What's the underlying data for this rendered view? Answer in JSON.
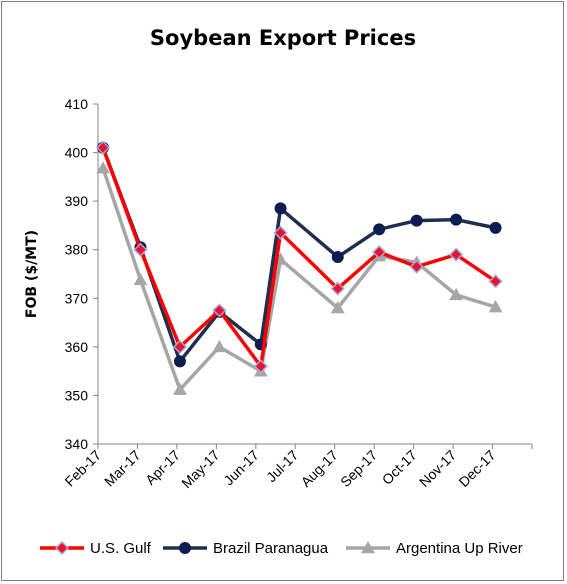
{
  "chart_data": {
    "type": "line",
    "title": "Soybean Export Prices",
    "xlabel": "",
    "ylabel": "FOB ($/MT)",
    "ylim": [
      340,
      410
    ],
    "yticks": [
      340,
      350,
      360,
      370,
      380,
      390,
      400,
      410
    ],
    "categories": [
      "Feb-17",
      "Mar-17",
      "Apr-17",
      "May-17",
      "Jun-17",
      "Jul-17",
      "Aug-17",
      "Sep-17",
      "Oct-17",
      "Nov-17",
      "Dec-17"
    ],
    "grid": false,
    "legend_position": "bottom",
    "series": [
      {
        "name": "U.S. Gulf",
        "color": "#ff0000",
        "marker": "diamond",
        "marker_fill": "#e8142e",
        "marker_stroke": "#a6a6d9",
        "points": [
          {
            "x": 0.0,
            "y": 401
          },
          {
            "x": 0.95,
            "y": 380
          },
          {
            "x": 1.95,
            "y": 360
          },
          {
            "x": 2.95,
            "y": 367.5
          },
          {
            "x": 4.0,
            "y": 356
          },
          {
            "x": 4.5,
            "y": 383.5
          },
          {
            "x": 5.95,
            "y": 372
          },
          {
            "x": 7.0,
            "y": 379.5
          },
          {
            "x": 7.95,
            "y": 376.5
          },
          {
            "x": 8.95,
            "y": 379
          },
          {
            "x": 9.95,
            "y": 373.5
          }
        ]
      },
      {
        "name": "Brazil Paranagua",
        "color": "#1f2d4f",
        "marker": "circle",
        "marker_fill": "#0d1d52",
        "marker_stroke": "#0d1d52",
        "points": [
          {
            "x": 0.0,
            "y": 401
          },
          {
            "x": 0.95,
            "y": 380.5
          },
          {
            "x": 1.95,
            "y": 357
          },
          {
            "x": 2.95,
            "y": 367.2
          },
          {
            "x": 4.0,
            "y": 360.5
          },
          {
            "x": 4.5,
            "y": 388.5
          },
          {
            "x": 5.95,
            "y": 378.5
          },
          {
            "x": 7.0,
            "y": 384.2
          },
          {
            "x": 7.95,
            "y": 386
          },
          {
            "x": 8.95,
            "y": 386.2
          },
          {
            "x": 9.95,
            "y": 384.5
          }
        ]
      },
      {
        "name": "Argentina Up River",
        "color": "#a6a6a6",
        "marker": "triangle",
        "marker_fill": "#a6a6a6",
        "marker_stroke": "#a6a6a6",
        "points": [
          {
            "x": 0.0,
            "y": 396.8
          },
          {
            "x": 0.95,
            "y": 373.8
          },
          {
            "x": 1.95,
            "y": 351.2
          },
          {
            "x": 2.95,
            "y": 360
          },
          {
            "x": 4.0,
            "y": 355
          },
          {
            "x": 4.5,
            "y": 378
          },
          {
            "x": 5.95,
            "y": 368
          },
          {
            "x": 7.0,
            "y": 378.7
          },
          {
            "x": 7.95,
            "y": 377.4
          },
          {
            "x": 8.95,
            "y": 370.7
          },
          {
            "x": 9.95,
            "y": 368.2
          }
        ]
      }
    ]
  }
}
